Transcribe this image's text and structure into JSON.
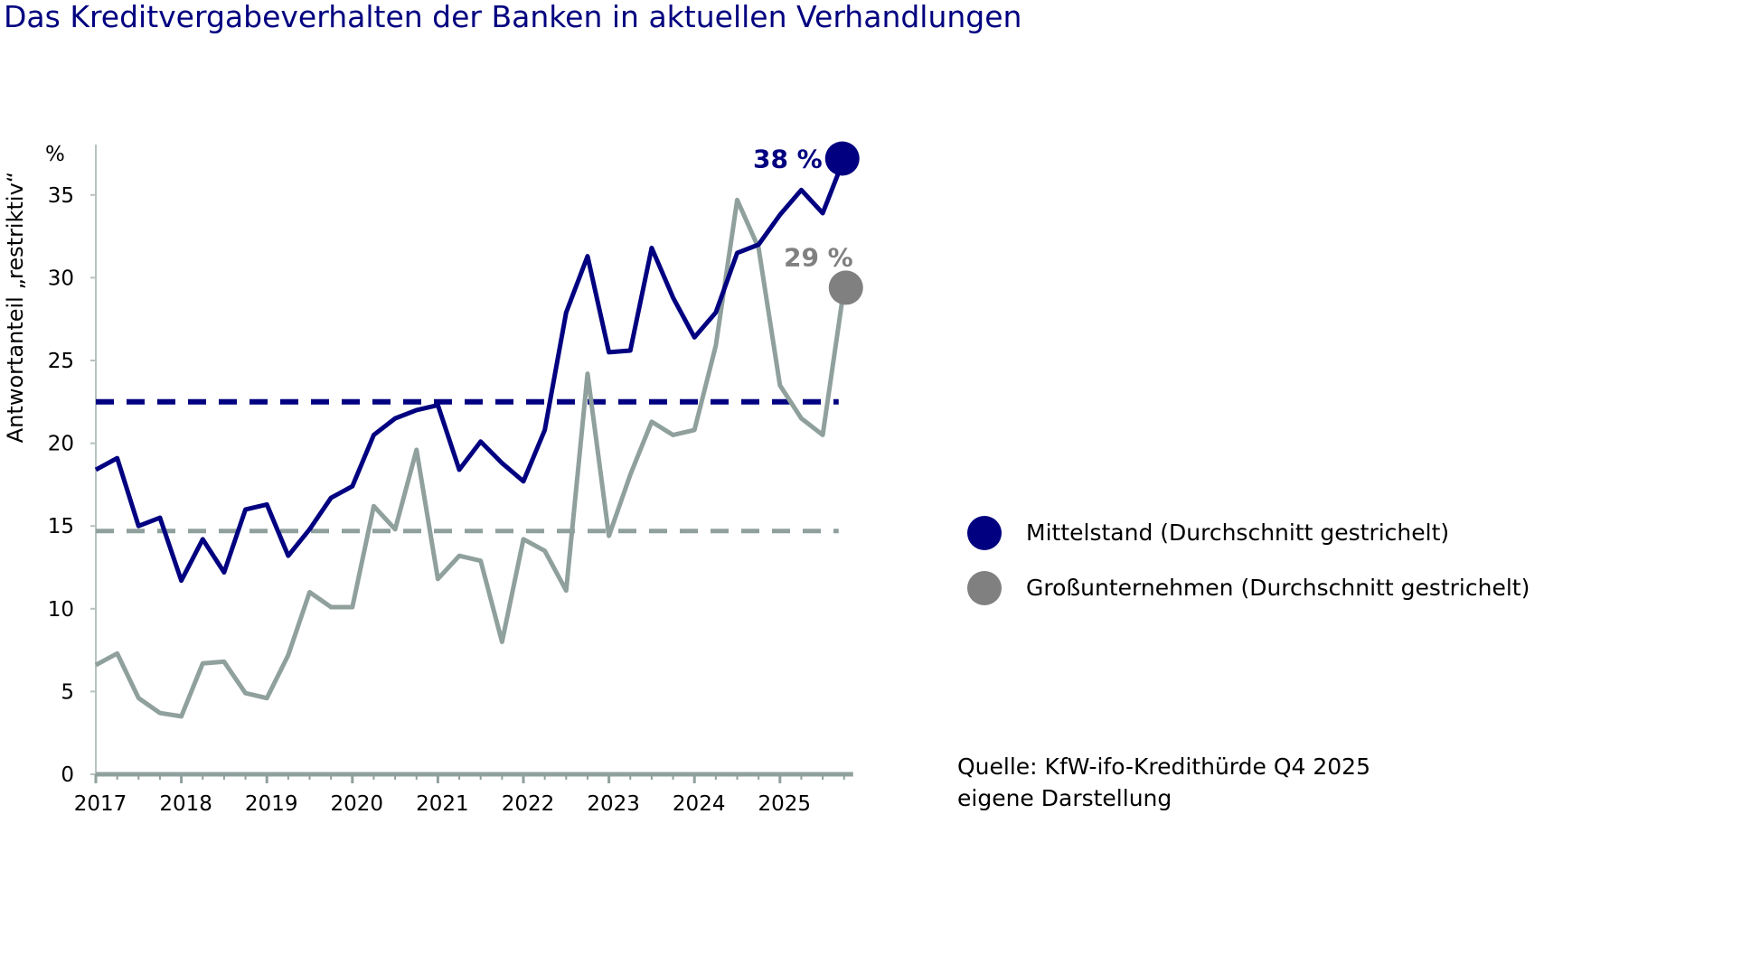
{
  "title": "Das Kreditvergabeverhalten der Banken in aktuellen Verhandlungen",
  "source_lines": [
    "Quelle: KfW-ifo-Kredithürde Q4 2025",
    "eigene Darstellung"
  ],
  "chart_data": {
    "type": "line",
    "ylabel": "Antwortanteil „restriktiv“",
    "yunit": "%",
    "ylim": [
      0,
      37.5
    ],
    "yticks": [
      0,
      5,
      10,
      15,
      20,
      25,
      30,
      35
    ],
    "xticks": [
      "2017",
      "2018",
      "2019",
      "2020",
      "2021",
      "2022",
      "2023",
      "2024",
      "2025"
    ],
    "x_start": "2017 Q1",
    "x_frequency": "quarterly",
    "grid": false,
    "legend_position": "right",
    "series": [
      {
        "name": "Mittelstand (Durchschnitt gestrichelt)",
        "color": "#000080",
        "average": 22.5,
        "end_label": "38 %",
        "values": [
          18.4,
          19.1,
          15.0,
          15.5,
          11.7,
          14.2,
          12.2,
          16.0,
          16.3,
          13.2,
          14.8,
          16.7,
          17.4,
          20.5,
          21.5,
          22.0,
          22.3,
          18.4,
          20.1,
          18.8,
          17.7,
          20.8,
          27.9,
          31.3,
          25.5,
          25.6,
          31.8,
          28.8,
          26.4,
          27.9,
          31.5,
          32.0,
          33.8,
          35.3,
          33.9,
          37.2
        ]
      },
      {
        "name": "Großunternehmen (Durchschnitt gestrichelt)",
        "color": "#8FA09D",
        "marker_color": "#808080",
        "average": 14.7,
        "end_label": "29 %",
        "values": [
          6.6,
          7.3,
          4.6,
          3.7,
          3.5,
          6.7,
          6.8,
          4.9,
          4.6,
          7.2,
          11.0,
          10.1,
          10.1,
          16.2,
          14.8,
          19.6,
          11.8,
          13.2,
          12.9,
          8.0,
          14.2,
          13.5,
          11.1,
          24.2,
          14.4,
          18.1,
          21.3,
          20.5,
          20.8,
          25.9,
          34.7,
          31.8,
          23.5,
          21.5,
          20.5,
          29.4
        ]
      }
    ]
  }
}
